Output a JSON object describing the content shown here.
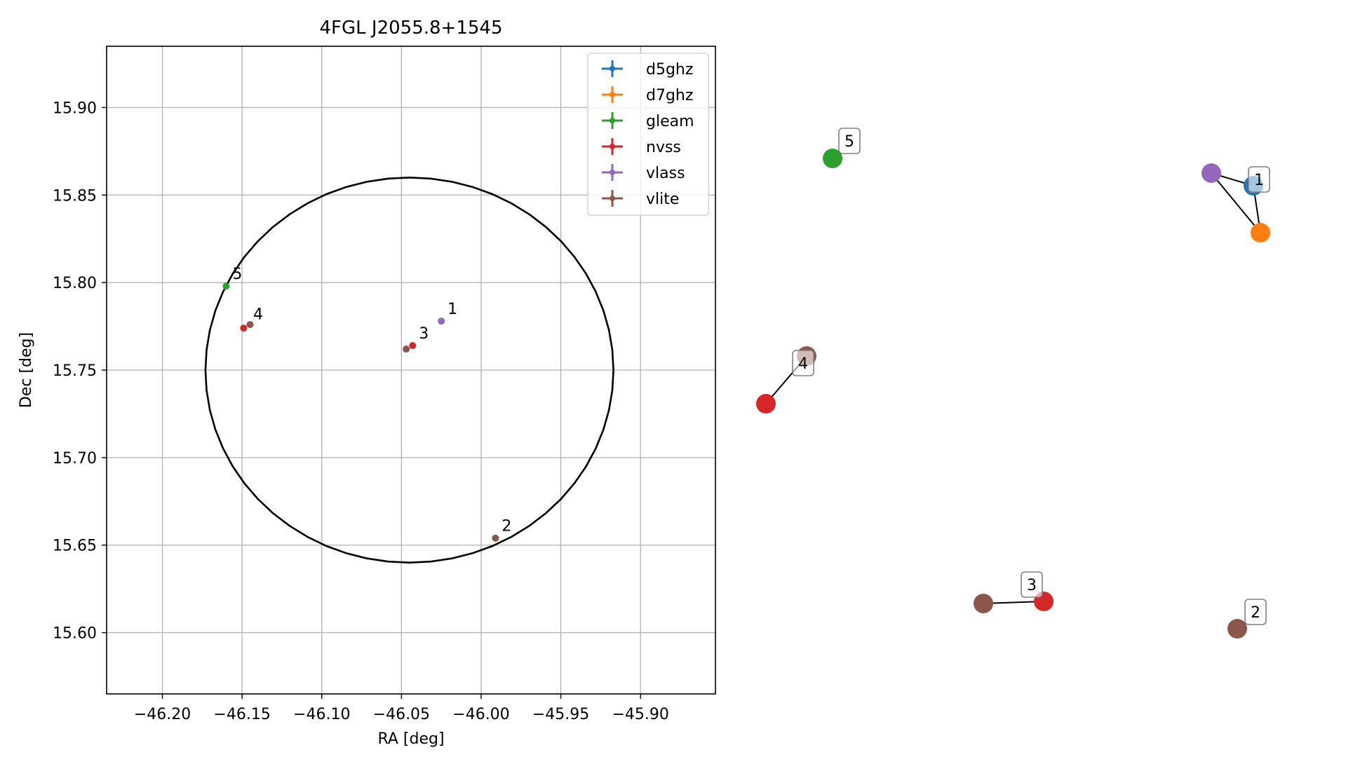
{
  "chart_data": [
    {
      "type": "scatter",
      "title": "4FGL J2055.8+1545",
      "xlabel": "RA [deg]",
      "ylabel": "Dec [deg]",
      "xlim": [
        -46.235,
        -45.853
      ],
      "ylim": [
        15.565,
        15.935
      ],
      "grid": true,
      "legend_position": "top-right",
      "xticks": [
        {
          "value": -46.2,
          "label": "−46.20"
        },
        {
          "value": -46.15,
          "label": "−46.15"
        },
        {
          "value": -46.1,
          "label": "−46.10"
        },
        {
          "value": -46.05,
          "label": "−46.05"
        },
        {
          "value": -46.0,
          "label": "−46.00"
        },
        {
          "value": -45.95,
          "label": "−45.95"
        },
        {
          "value": -45.9,
          "label": "−45.90"
        }
      ],
      "yticks": [
        {
          "value": 15.6,
          "label": "15.60"
        },
        {
          "value": 15.65,
          "label": "15.65"
        },
        {
          "value": 15.7,
          "label": "15.70"
        },
        {
          "value": 15.75,
          "label": "15.75"
        },
        {
          "value": 15.8,
          "label": "15.80"
        },
        {
          "value": 15.85,
          "label": "15.85"
        },
        {
          "value": 15.9,
          "label": "15.90"
        }
      ],
      "circle": {
        "center": [
          -46.045,
          15.75
        ],
        "rx": 0.128,
        "ry": 0.11
      },
      "series": [
        {
          "name": "d5ghz",
          "color": "#1f77b4",
          "points": []
        },
        {
          "name": "d7ghz",
          "color": "#ff7f0e",
          "points": []
        },
        {
          "name": "gleam",
          "color": "#2ca02c",
          "points": [
            {
              "x": -46.16,
              "y": 15.798
            }
          ]
        },
        {
          "name": "nvss",
          "color": "#d62728",
          "points": [
            {
              "x": -46.149,
              "y": 15.774
            },
            {
              "x": -46.043,
              "y": 15.764
            }
          ]
        },
        {
          "name": "vlass",
          "color": "#9467bd",
          "points": [
            {
              "x": -46.025,
              "y": 15.778
            }
          ]
        },
        {
          "name": "vlite",
          "color": "#8c564b",
          "points": [
            {
              "x": -46.145,
              "y": 15.776
            },
            {
              "x": -46.047,
              "y": 15.762
            },
            {
              "x": -45.991,
              "y": 15.654
            }
          ]
        }
      ],
      "annotations": [
        {
          "text": "1",
          "x": -46.025,
          "y": 15.778
        },
        {
          "text": "2",
          "x": -45.991,
          "y": 15.654
        },
        {
          "text": "3",
          "x": -46.043,
          "y": 15.764
        },
        {
          "text": "4",
          "x": -46.147,
          "y": 15.775
        },
        {
          "text": "5",
          "x": -46.16,
          "y": 15.798
        }
      ]
    },
    {
      "type": "network",
      "groups": [
        {
          "label": "1",
          "nodes": [
            {
              "series": "vlass",
              "color": "#9467bd"
            },
            {
              "series": "d5ghz",
              "color": "#1f77b4"
            },
            {
              "series": "d7ghz",
              "color": "#ff7f0e"
            }
          ],
          "edges": [
            [
              0,
              1
            ],
            [
              1,
              2
            ],
            [
              0,
              2
            ]
          ]
        },
        {
          "label": "2",
          "nodes": [
            {
              "series": "vlite",
              "color": "#8c564b"
            }
          ],
          "edges": []
        },
        {
          "label": "3",
          "nodes": [
            {
              "series": "vlite",
              "color": "#8c564b"
            },
            {
              "series": "nvss",
              "color": "#d62728"
            }
          ],
          "edges": [
            [
              0,
              1
            ]
          ]
        },
        {
          "label": "4",
          "nodes": [
            {
              "series": "vlite",
              "color": "#8c564b"
            },
            {
              "series": "nvss",
              "color": "#d62728"
            }
          ],
          "edges": [
            [
              0,
              1
            ]
          ]
        },
        {
          "label": "5",
          "nodes": [
            {
              "series": "gleam",
              "color": "#2ca02c"
            }
          ],
          "edges": []
        }
      ]
    }
  ]
}
